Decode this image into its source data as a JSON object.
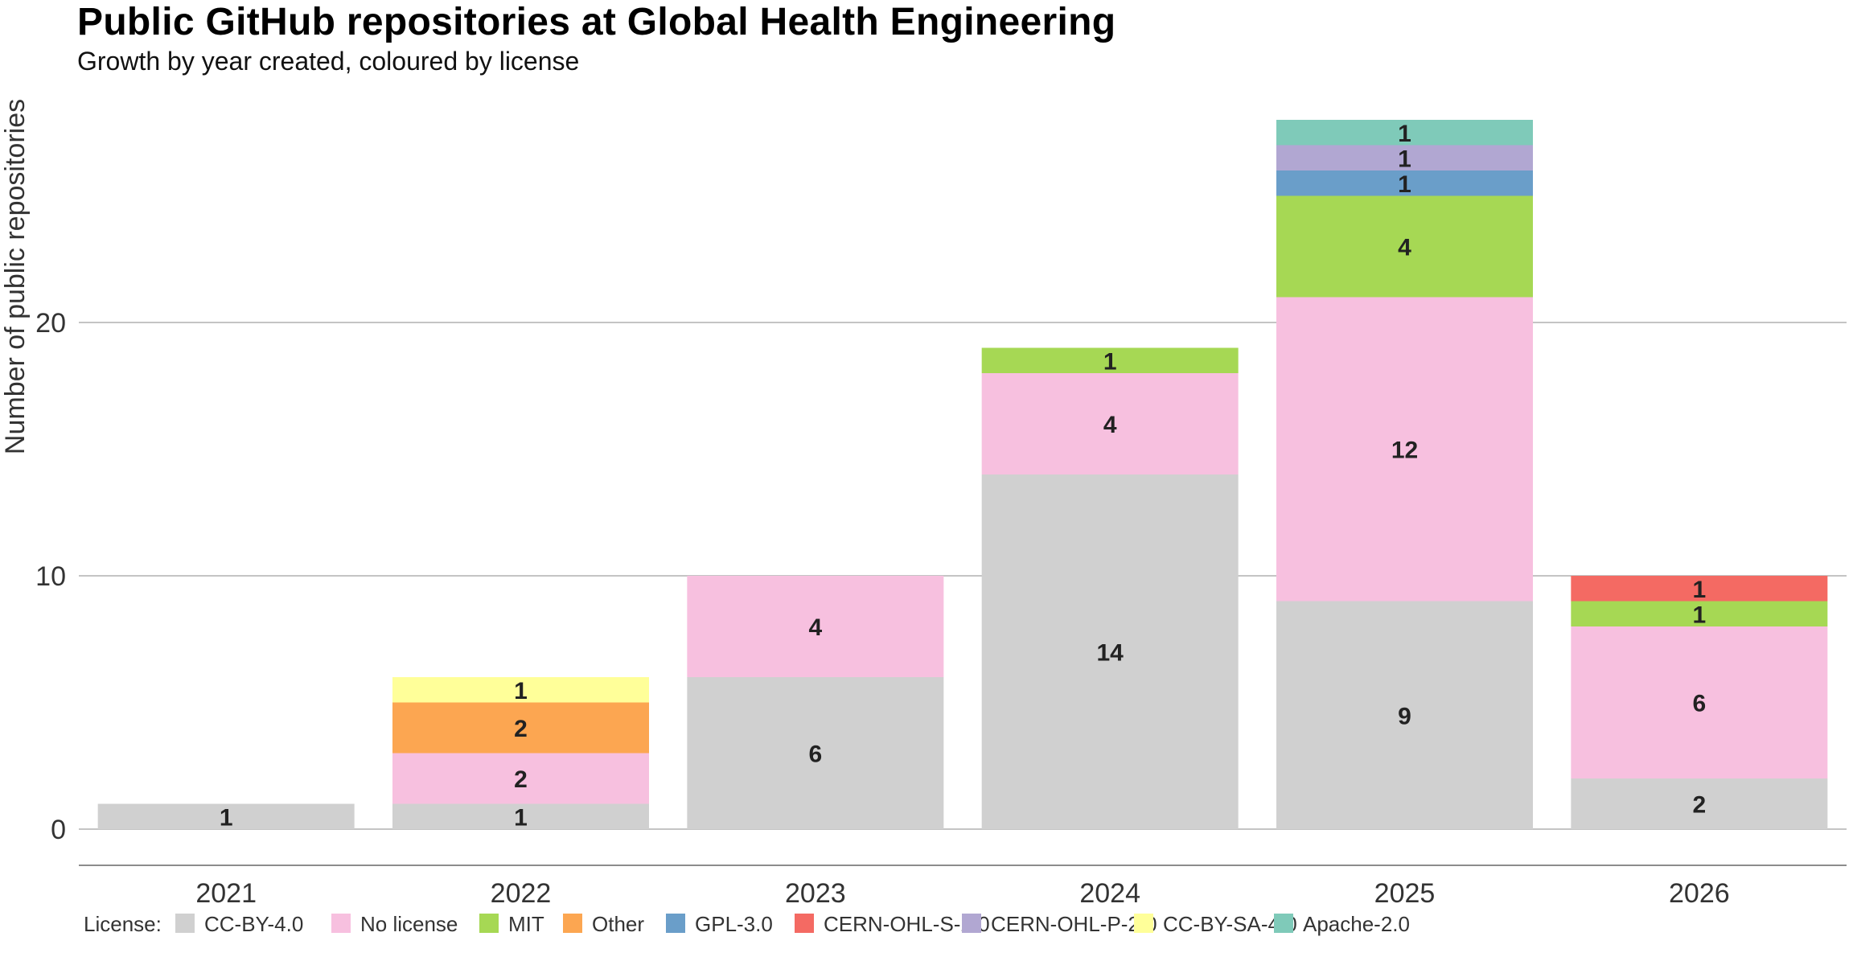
{
  "title": "Public GitHub repositories at Global Health Engineering",
  "subtitle": "Growth by year created, coloured by license",
  "chart_data": {
    "type": "bar",
    "stacked": true,
    "title": "Public GitHub repositories at Global Health Engineering",
    "subtitle": "Growth by year created, coloured by license",
    "xlabel": "",
    "ylabel": "Number of public repositories",
    "categories": [
      "2021",
      "2022",
      "2023",
      "2024",
      "2025",
      "2026"
    ],
    "ylim": [
      -1.4,
      28.5
    ],
    "yticks": [
      0,
      10,
      20
    ],
    "grid": "horizontal",
    "legend_title": "License:",
    "legend_position": "bottom",
    "series": [
      {
        "name": "CC-BY-4.0",
        "color": "#d0d0d0",
        "values": [
          1,
          1,
          6,
          14,
          9,
          2
        ]
      },
      {
        "name": "No license",
        "color": "#f7c0df",
        "values": [
          0,
          2,
          4,
          4,
          12,
          6
        ]
      },
      {
        "name": "MIT",
        "color": "#a6d854",
        "values": [
          0,
          0,
          0,
          1,
          4,
          1
        ]
      },
      {
        "name": "Other",
        "color": "#fca651",
        "values": [
          0,
          2,
          0,
          0,
          0,
          0
        ]
      },
      {
        "name": "GPL-3.0",
        "color": "#6a9ec9",
        "values": [
          0,
          0,
          0,
          0,
          1,
          0
        ]
      },
      {
        "name": "CERN-OHL-S-2.0",
        "color": "#f46a63",
        "values": [
          0,
          0,
          0,
          0,
          0,
          1
        ]
      },
      {
        "name": "CERN-OHL-P-2.0",
        "color": "#b1a7d2",
        "values": [
          0,
          0,
          0,
          0,
          1,
          0
        ]
      },
      {
        "name": "CC-BY-SA-4.0",
        "color": "#ffff99",
        "values": [
          0,
          1,
          0,
          0,
          0,
          0
        ]
      },
      {
        "name": "Apache-2.0",
        "color": "#7fcab9",
        "values": [
          0,
          0,
          0,
          0,
          1,
          0
        ]
      }
    ]
  }
}
